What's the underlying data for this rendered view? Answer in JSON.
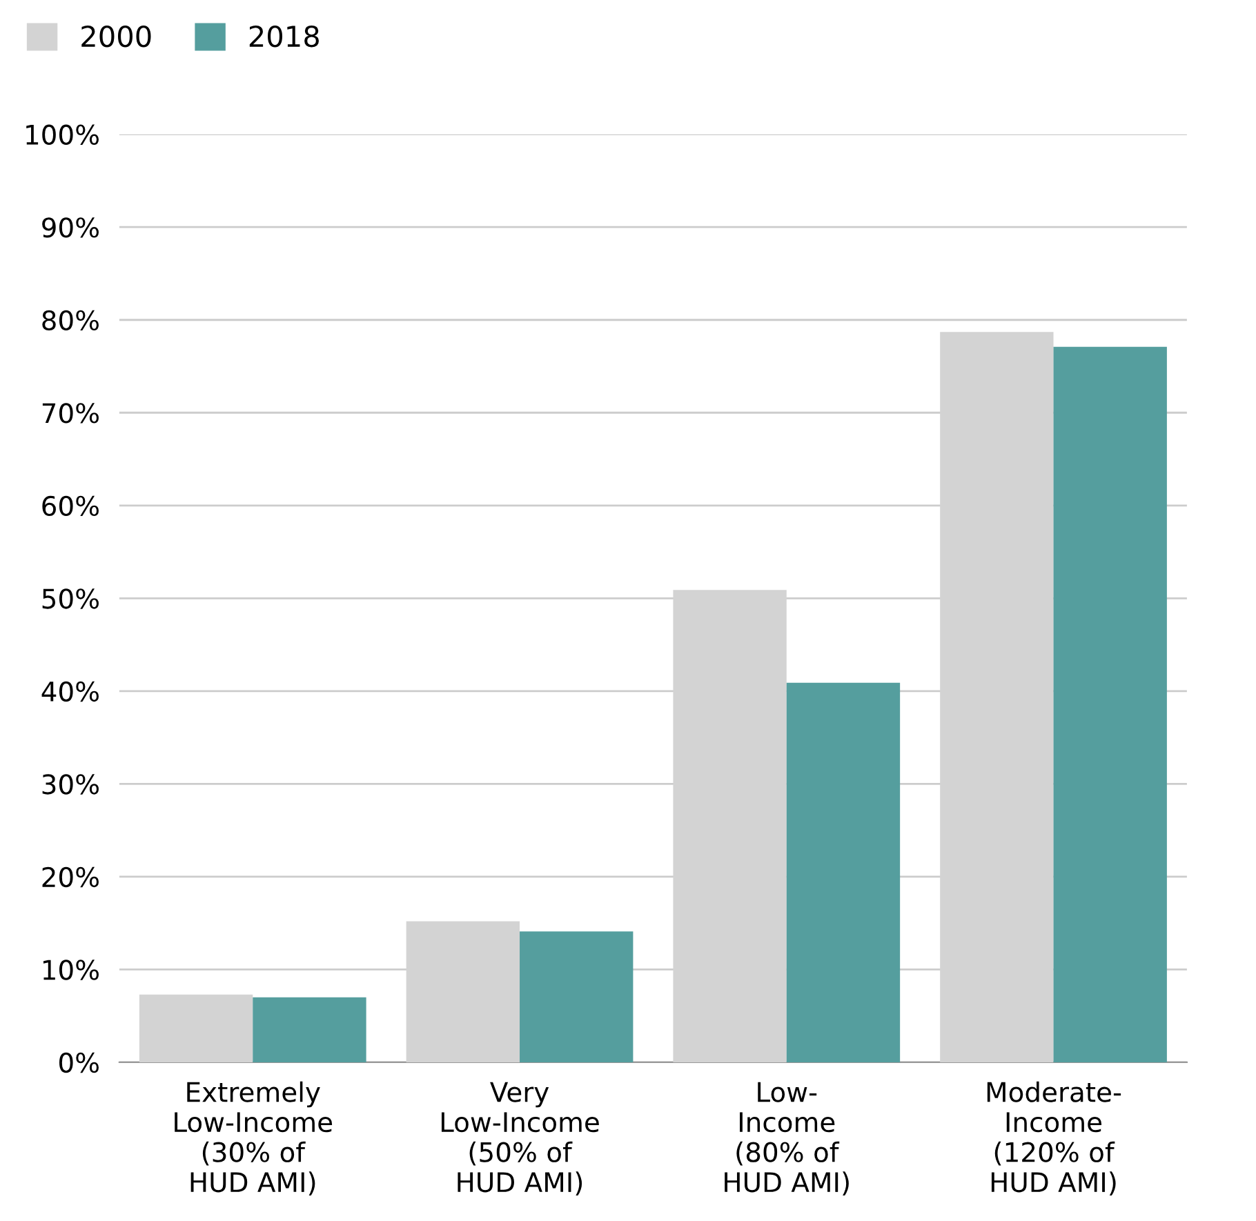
{
  "chart_data": {
    "type": "bar",
    "categories": [
      "Extremely\nLow-Income\n(30% of\nHUD AMI)",
      "Very\nLow-Income\n(50% of\nHUD AMI)",
      "Low-\nIncome\n(80% of\nHUD AMI)",
      "Moderate-\nIncome\n(120% of\nHUD AMI)"
    ],
    "series": [
      {
        "name": "2000",
        "color": "#d3d3d3",
        "values": [
          7.3,
          15.2,
          50.9,
          78.7
        ]
      },
      {
        "name": "2018",
        "color": "#559e9e",
        "values": [
          7.0,
          14.1,
          40.9,
          77.1
        ]
      }
    ],
    "ylim": [
      0,
      100
    ],
    "yticks": [
      {
        "value": 0,
        "label": "0%"
      },
      {
        "value": 10,
        "label": "10%"
      },
      {
        "value": 20,
        "label": "20%"
      },
      {
        "value": 30,
        "label": "30%"
      },
      {
        "value": 40,
        "label": "40%"
      },
      {
        "value": 50,
        "label": "50%"
      },
      {
        "value": 60,
        "label": "60%"
      },
      {
        "value": 70,
        "label": "70%"
      },
      {
        "value": 80,
        "label": "80%"
      },
      {
        "value": 90,
        "label": "90%"
      },
      {
        "value": 100,
        "label": "100%"
      }
    ],
    "grid": "y",
    "legend": "top left"
  }
}
